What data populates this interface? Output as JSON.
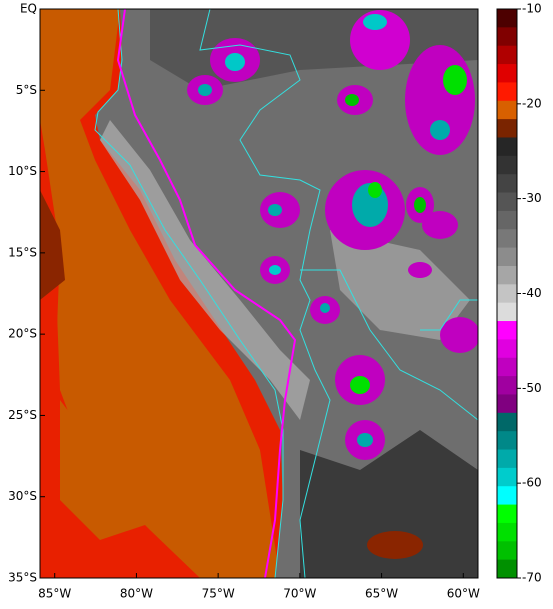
{
  "map": {
    "xlim": [
      -85.9,
      -59.1
    ],
    "ylim": [
      0,
      -35
    ],
    "xticks": [
      {
        "value": -85,
        "label": "85°W"
      },
      {
        "value": -80,
        "label": "80°W"
      },
      {
        "value": -75,
        "label": "75°W"
      },
      {
        "value": -70,
        "label": "70°W"
      },
      {
        "value": -65,
        "label": "65°W"
      },
      {
        "value": -60,
        "label": "60°W"
      }
    ],
    "yticks": [
      {
        "value": 0,
        "label": "EQ"
      },
      {
        "value": -5,
        "label": "5°S"
      },
      {
        "value": -10,
        "label": "10°S"
      },
      {
        "value": -15,
        "label": "15°S"
      },
      {
        "value": -20,
        "label": "20°S"
      },
      {
        "value": -25,
        "label": "25°S"
      },
      {
        "value": -30,
        "label": "30°S"
      },
      {
        "value": -35,
        "label": "35°S"
      }
    ]
  },
  "colorbar": {
    "lim": [
      -10,
      -70
    ],
    "ticks": [
      -10,
      -20,
      -30,
      -40,
      -50,
      -60,
      -70
    ],
    "colors": [
      "#4d0000",
      "#800000",
      "#b00000",
      "#e00000",
      "#ff1a00",
      "#d86000",
      "#7a2400",
      "#262626",
      "#333333",
      "#444444",
      "#555555",
      "#666666",
      "#787878",
      "#8c8c8c",
      "#a6a6a6",
      "#c4c4c4",
      "#dcdcdc",
      "#ff00ff",
      "#e000e0",
      "#c000c0",
      "#a000a0",
      "#800080",
      "#006868",
      "#008888",
      "#00aaaa",
      "#00cccc",
      "#00ffff",
      "#00ff00",
      "#00e000",
      "#00c000",
      "#009000"
    ]
  }
}
